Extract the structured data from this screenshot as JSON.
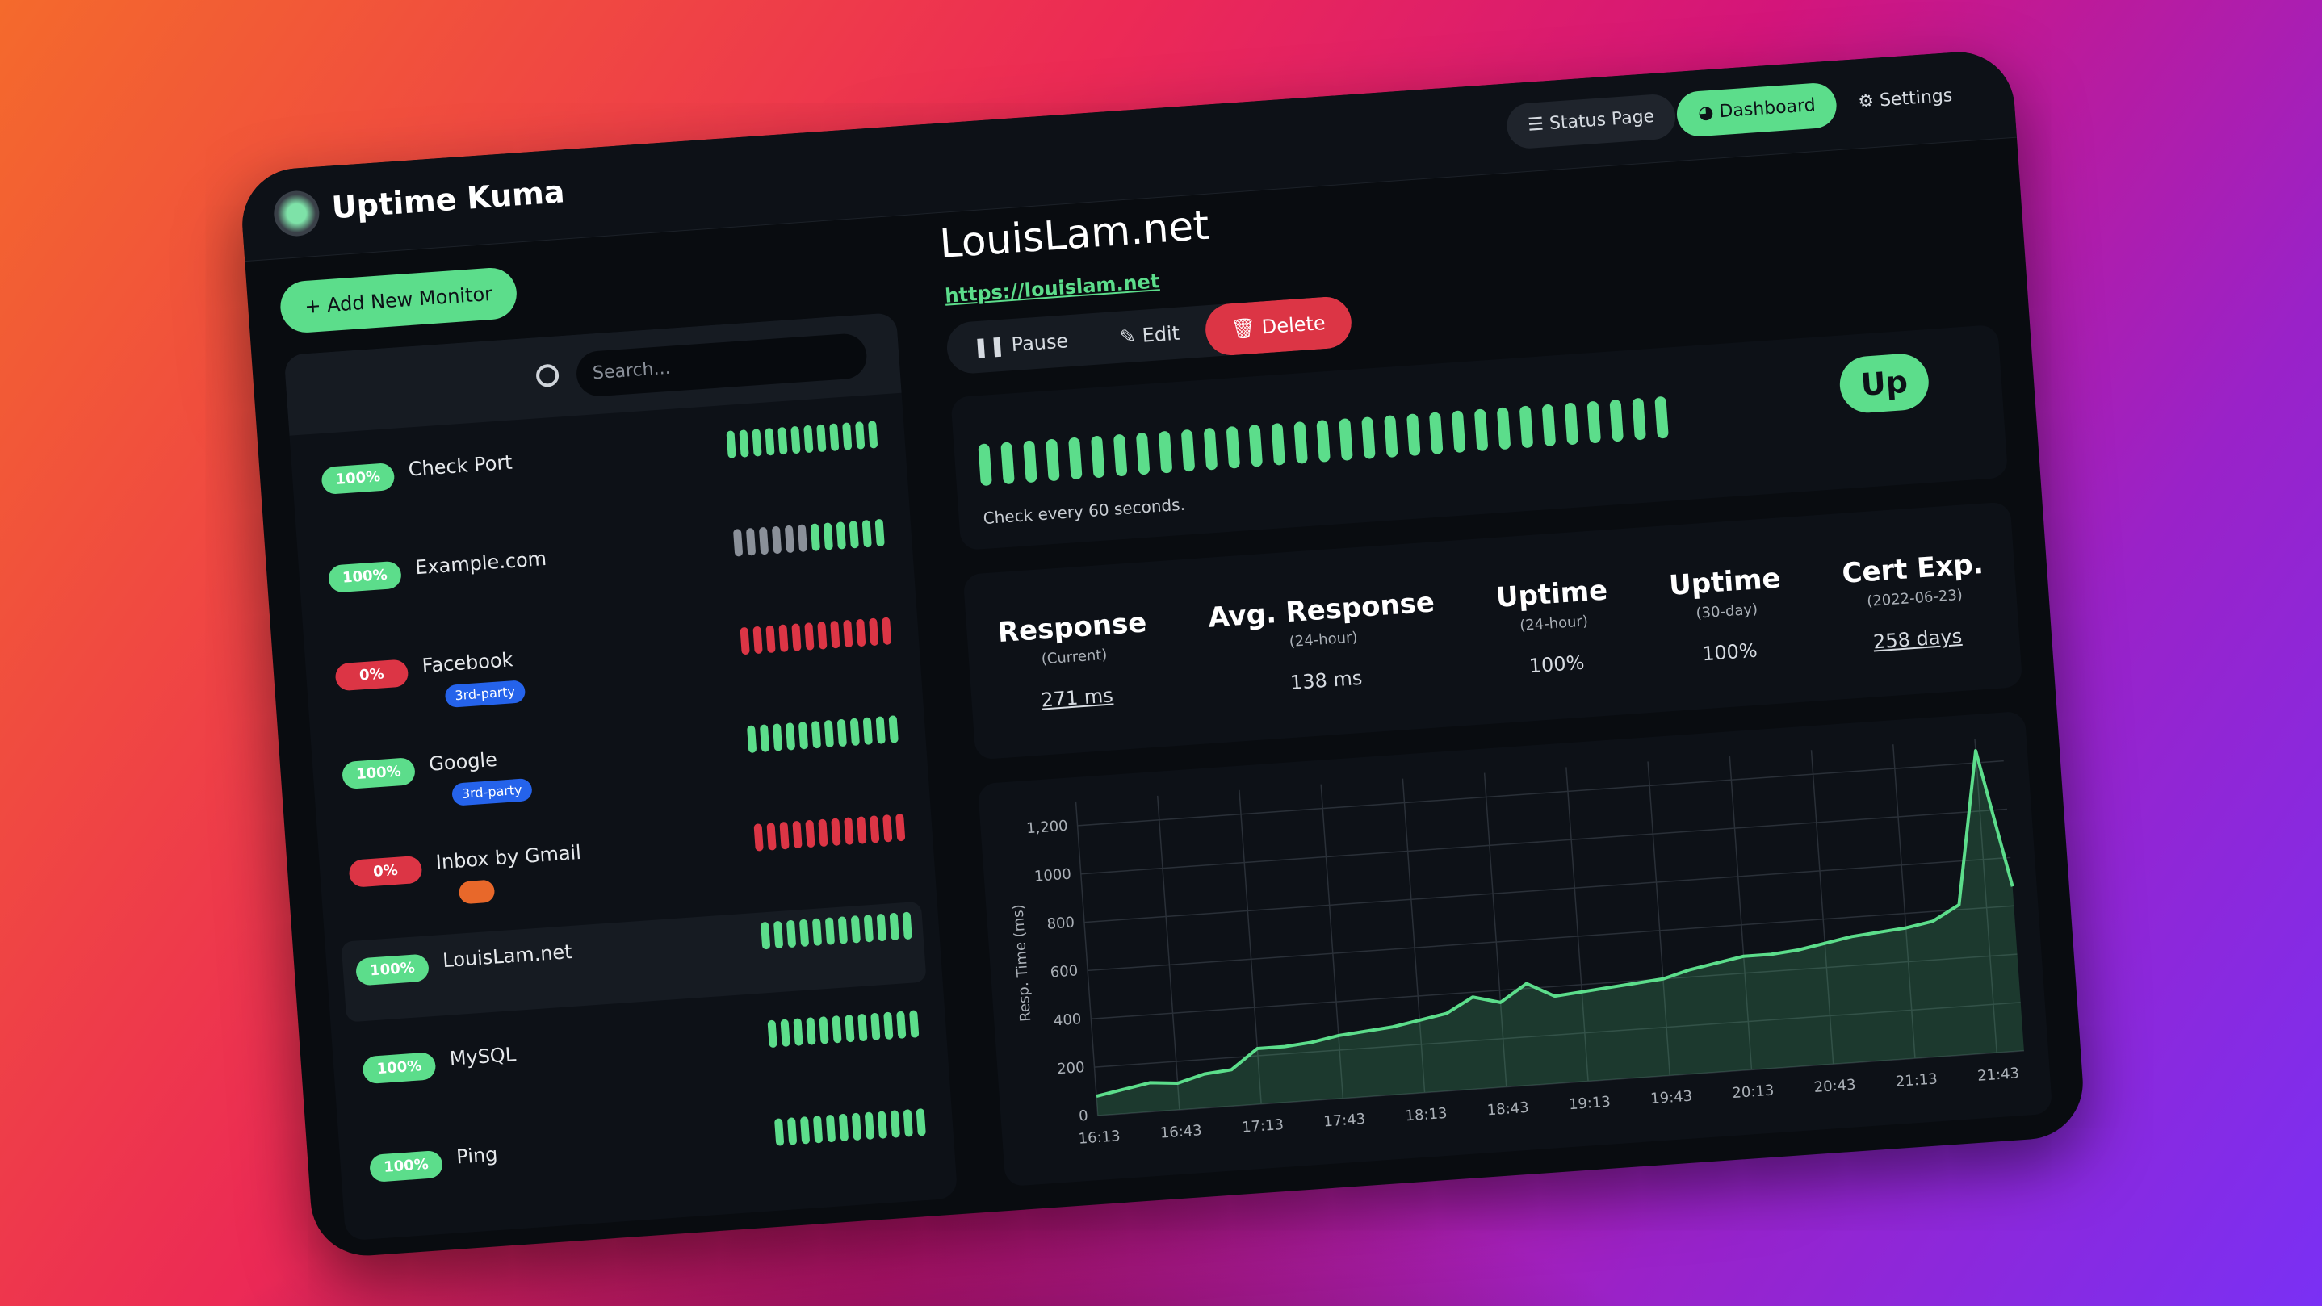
{
  "header": {
    "title": "Uptime Kuma",
    "nav": [
      "Status Page",
      "Dashboard",
      "Settings"
    ]
  },
  "sidebar": {
    "add_button": "Add New Monitor",
    "search_placeholder": "Search...",
    "monitors": [
      {
        "name": "Check Port",
        "uptime": "100%",
        "badge_color": "#5cdd8b",
        "beats": [
          "#5cdd8b",
          "#5cdd8b",
          "#5cdd8b",
          "#5cdd8b",
          "#5cdd8b",
          "#5cdd8b",
          "#5cdd8b",
          "#5cdd8b",
          "#5cdd8b",
          "#5cdd8b",
          "#5cdd8b",
          "#5cdd8b"
        ]
      },
      {
        "name": "Example.com",
        "uptime": "100%",
        "badge_color": "#5cdd8b",
        "beats": [
          "#8a9099",
          "#8a9099",
          "#8a9099",
          "#8a9099",
          "#8a9099",
          "#8a9099",
          "#5cdd8b",
          "#5cdd8b",
          "#5cdd8b",
          "#5cdd8b",
          "#5cdd8b",
          "#5cdd8b"
        ]
      },
      {
        "name": "Facebook",
        "uptime": "0%",
        "badge_color": "#dc3545",
        "tag": {
          "label": "3rd-party",
          "color": "#2563eb"
        },
        "beats": [
          "#dc3545",
          "#dc3545",
          "#dc3545",
          "#dc3545",
          "#dc3545",
          "#dc3545",
          "#dc3545",
          "#dc3545",
          "#dc3545",
          "#dc3545",
          "#dc3545",
          "#dc3545"
        ]
      },
      {
        "name": "Google",
        "uptime": "100%",
        "badge_color": "#5cdd8b",
        "tag": {
          "label": "3rd-party",
          "color": "#2563eb"
        },
        "beats": [
          "#5cdd8b",
          "#5cdd8b",
          "#5cdd8b",
          "#5cdd8b",
          "#5cdd8b",
          "#5cdd8b",
          "#5cdd8b",
          "#5cdd8b",
          "#5cdd8b",
          "#5cdd8b",
          "#5cdd8b",
          "#5cdd8b"
        ]
      },
      {
        "name": "Inbox by Gmail",
        "uptime": "0%",
        "badge_color": "#dc3545",
        "tag": {
          "color": "#e8682a"
        },
        "beats": [
          "#dc3545",
          "#dc3545",
          "#dc3545",
          "#dc3545",
          "#dc3545",
          "#dc3545",
          "#dc3545",
          "#dc3545",
          "#dc3545",
          "#dc3545",
          "#dc3545",
          "#dc3545"
        ]
      },
      {
        "name": "LouisLam.net",
        "uptime": "100%",
        "badge_color": "#5cdd8b",
        "selected": true,
        "beats": [
          "#5cdd8b",
          "#5cdd8b",
          "#5cdd8b",
          "#5cdd8b",
          "#5cdd8b",
          "#5cdd8b",
          "#5cdd8b",
          "#5cdd8b",
          "#5cdd8b",
          "#5cdd8b",
          "#5cdd8b",
          "#5cdd8b"
        ]
      },
      {
        "name": "MySQL",
        "uptime": "100%",
        "badge_color": "#5cdd8b",
        "beats": [
          "#5cdd8b",
          "#5cdd8b",
          "#5cdd8b",
          "#5cdd8b",
          "#5cdd8b",
          "#5cdd8b",
          "#5cdd8b",
          "#5cdd8b",
          "#5cdd8b",
          "#5cdd8b",
          "#5cdd8b",
          "#5cdd8b"
        ]
      },
      {
        "name": "Ping",
        "uptime": "100%",
        "badge_color": "#5cdd8b",
        "beats": [
          "#5cdd8b",
          "#5cdd8b",
          "#5cdd8b",
          "#5cdd8b",
          "#5cdd8b",
          "#5cdd8b",
          "#5cdd8b",
          "#5cdd8b",
          "#5cdd8b",
          "#5cdd8b",
          "#5cdd8b",
          "#5cdd8b"
        ]
      }
    ]
  },
  "monitor": {
    "title": "LouisLam.net",
    "url": "https://louislam.net",
    "actions": [
      "Pause",
      "Edit",
      "Delete"
    ],
    "status": "Up",
    "interval_note": "Check every 60 seconds.",
    "beats": [
      "#5cdd8b",
      "#5cdd8b",
      "#5cdd8b",
      "#5cdd8b",
      "#5cdd8b",
      "#5cdd8b",
      "#5cdd8b",
      "#5cdd8b",
      "#5cdd8b",
      "#5cdd8b",
      "#5cdd8b",
      "#5cdd8b",
      "#5cdd8b",
      "#5cdd8b",
      "#5cdd8b",
      "#5cdd8b",
      "#5cdd8b",
      "#5cdd8b",
      "#5cdd8b",
      "#5cdd8b",
      "#5cdd8b",
      "#5cdd8b",
      "#5cdd8b",
      "#5cdd8b",
      "#5cdd8b",
      "#5cdd8b",
      "#5cdd8b",
      "#5cdd8b",
      "#5cdd8b",
      "#5cdd8b",
      "#5cdd8b"
    ]
  },
  "stats": [
    {
      "title": "Response",
      "subtitle": "(Current)",
      "value": "271 ms",
      "underline": true
    },
    {
      "title": "Avg. Response",
      "subtitle": "(24-hour)",
      "value": "138 ms"
    },
    {
      "title": "Uptime",
      "subtitle": "(24-hour)",
      "value": "100%"
    },
    {
      "title": "Uptime",
      "subtitle": "(30-day)",
      "value": "100%"
    },
    {
      "title": "Cert Exp.",
      "subtitle": "(2022-06-23)",
      "value": "258 days",
      "underline": true
    }
  ],
  "chart_data": {
    "type": "line",
    "y_label": "Resp. Time (ms)",
    "categories": [
      "16:13",
      null,
      null,
      "16:43",
      null,
      null,
      "17:13",
      null,
      null,
      "17:43",
      null,
      null,
      "18:13",
      null,
      null,
      "18:43",
      null,
      null,
      "19:13",
      null,
      null,
      "19:43",
      null,
      null,
      "20:13",
      null,
      null,
      "20:43",
      null,
      null,
      "21:13",
      null,
      null,
      "21:43",
      null
    ],
    "series": [
      {
        "name": "Resp. Time",
        "color": "#5cdd8b",
        "values": [
          80,
          100,
          120,
          110,
          140,
          150,
          230,
          230,
          240,
          260,
          270,
          280,
          300,
          320,
          380,
          350,
          420,
          360,
          370,
          380,
          390,
          400,
          430,
          450,
          470,
          470,
          480,
          500,
          520,
          530,
          540,
          560,
          620,
          1250,
          680
        ]
      }
    ],
    "ylim": [
      0,
      1300
    ],
    "yticks": [
      0,
      200,
      400,
      600,
      800,
      1000,
      {
        "value": 1200,
        "label": "1,200"
      }
    ],
    "grid": true
  }
}
